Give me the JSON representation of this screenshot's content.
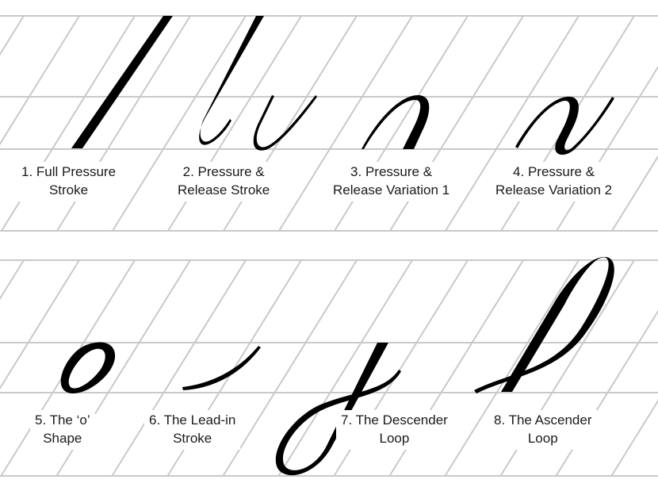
{
  "colors": {
    "background": "#ffffff",
    "guideline": "#c9c9c9",
    "ink": "#000000",
    "text": "#1a1a1a"
  },
  "exercises": [
    {
      "number": "1",
      "line1": "1. Full Pressure",
      "line2": "Stroke"
    },
    {
      "number": "2",
      "line1": "2. Pressure &",
      "line2": "Release Stroke"
    },
    {
      "number": "3",
      "line1": "3. Pressure &",
      "line2": "Release Variation 1"
    },
    {
      "number": "4",
      "line1": "4. Pressure &",
      "line2": "Release Variation 2"
    },
    {
      "number": "5",
      "line1": "5. The ‘o’",
      "line2": "Shape"
    },
    {
      "number": "6",
      "line1": "6. The Lead-in",
      "line2": "Stroke"
    },
    {
      "number": "7",
      "line1": "7. The Descender",
      "line2": "Loop"
    },
    {
      "number": "8",
      "line1": "8. The Ascender",
      "line2": "Loop"
    }
  ]
}
